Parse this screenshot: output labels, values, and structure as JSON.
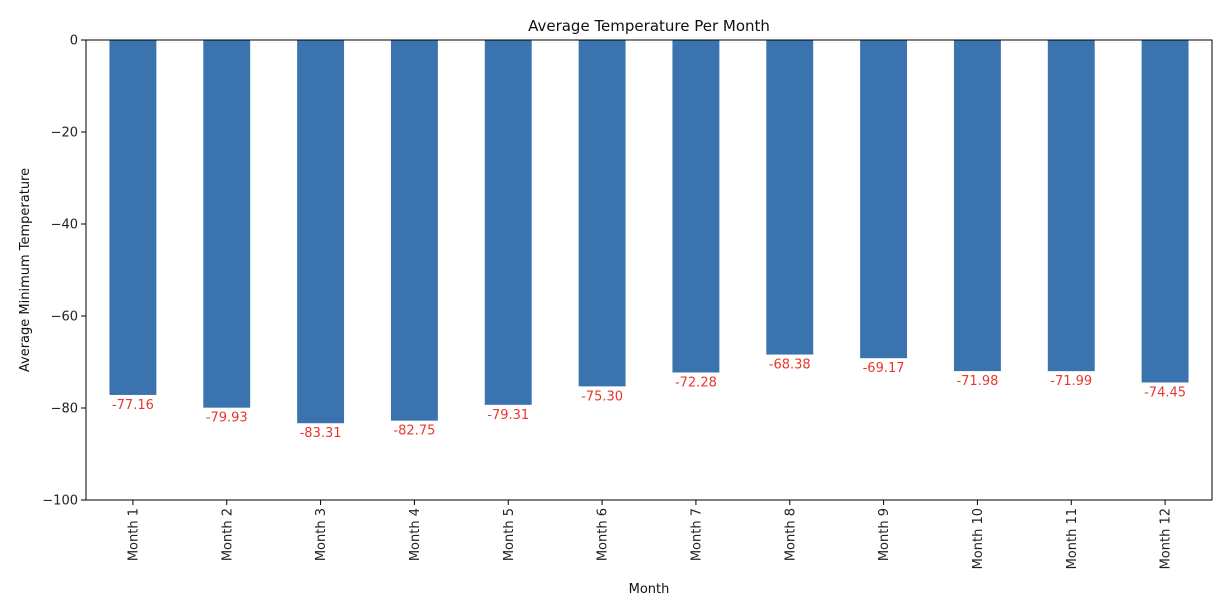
{
  "chart_data": {
    "type": "bar",
    "title": "Average Temperature Per Month",
    "xlabel": "Month",
    "ylabel": "Average Minimum Temperature",
    "categories": [
      "Month 1",
      "Month 2",
      "Month 3",
      "Month 4",
      "Month 5",
      "Month 6",
      "Month 7",
      "Month 8",
      "Month 9",
      "Month 10",
      "Month 11",
      "Month 12"
    ],
    "values": [
      -77.16,
      -79.93,
      -83.31,
      -82.75,
      -79.31,
      -75.3,
      -72.28,
      -68.38,
      -69.17,
      -71.98,
      -71.99,
      -74.45
    ],
    "value_labels": [
      "-77.16",
      "-79.93",
      "-83.31",
      "-82.75",
      "-79.31",
      "-75.30",
      "-72.28",
      "-68.38",
      "-69.17",
      "-71.98",
      "-71.99",
      "-74.45"
    ],
    "ylim": [
      -100,
      0
    ],
    "yticks": [
      0,
      -20,
      -40,
      -60,
      -80,
      -100
    ],
    "ytick_labels": [
      "0",
      "−20",
      "−40",
      "−60",
      "−80",
      "−100"
    ],
    "grid": false,
    "colors": {
      "bar": "#3a73ae",
      "data_label": "#e8382d",
      "axis": "#000000"
    }
  }
}
